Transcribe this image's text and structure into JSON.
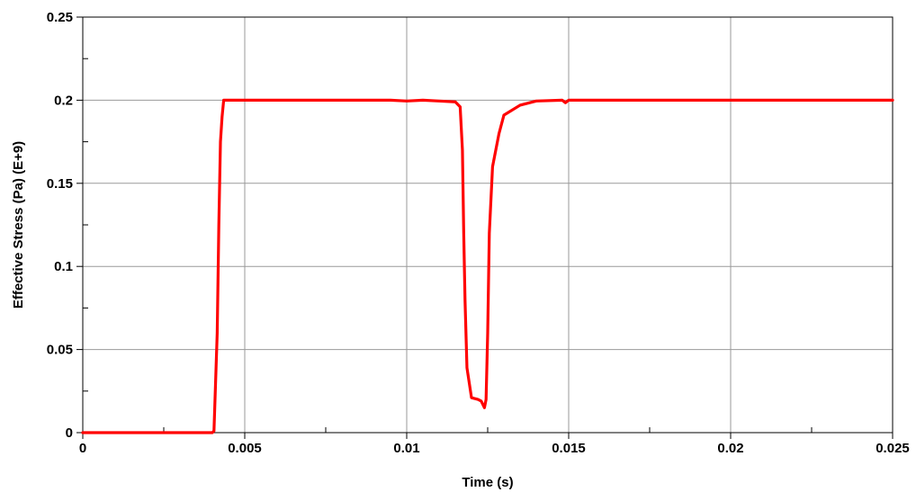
{
  "chart_data": {
    "type": "line",
    "title": "",
    "xlabel": "Time (s)",
    "ylabel": "Effective Stress (Pa) (E+9)",
    "xlim": [
      0,
      0.025
    ],
    "ylim": [
      0,
      0.25
    ],
    "x_ticks": [
      0,
      0.005,
      0.01,
      0.015,
      0.02,
      0.025
    ],
    "x_tick_labels": [
      "0",
      "0.005",
      "0.01",
      "0.015",
      "0.02",
      "0.025"
    ],
    "y_ticks": [
      0,
      0.05,
      0.1,
      0.15,
      0.2,
      0.25
    ],
    "y_tick_labels": [
      "0",
      "0.05",
      "0.1",
      "0.15",
      "0.2",
      "0.25"
    ],
    "grid": true,
    "series_color": "#ff0000",
    "series": [
      {
        "x": [
          0,
          0.004,
          0.00405,
          0.00415,
          0.0042,
          0.00425,
          0.0043,
          0.00435,
          0.0095,
          0.01,
          0.0105,
          0.011,
          0.0115,
          0.01165,
          0.01172,
          0.01176,
          0.0118,
          0.01186,
          0.012,
          0.0122,
          0.0123,
          0.0124,
          0.01245,
          0.0125,
          0.01255,
          0.01265,
          0.01285,
          0.013,
          0.0135,
          0.014,
          0.0148,
          0.0149,
          0.015,
          0.02,
          0.025
        ],
        "y": [
          0,
          0,
          0.001,
          0.06,
          0.125,
          0.175,
          0.19,
          0.2,
          0.2,
          0.1995,
          0.2,
          0.1995,
          0.199,
          0.196,
          0.17,
          0.12,
          0.08,
          0.039,
          0.021,
          0.02,
          0.019,
          0.015,
          0.02,
          0.06,
          0.12,
          0.16,
          0.18,
          0.191,
          0.197,
          0.1995,
          0.2,
          0.1985,
          0.2,
          0.2,
          0.2
        ]
      }
    ]
  }
}
